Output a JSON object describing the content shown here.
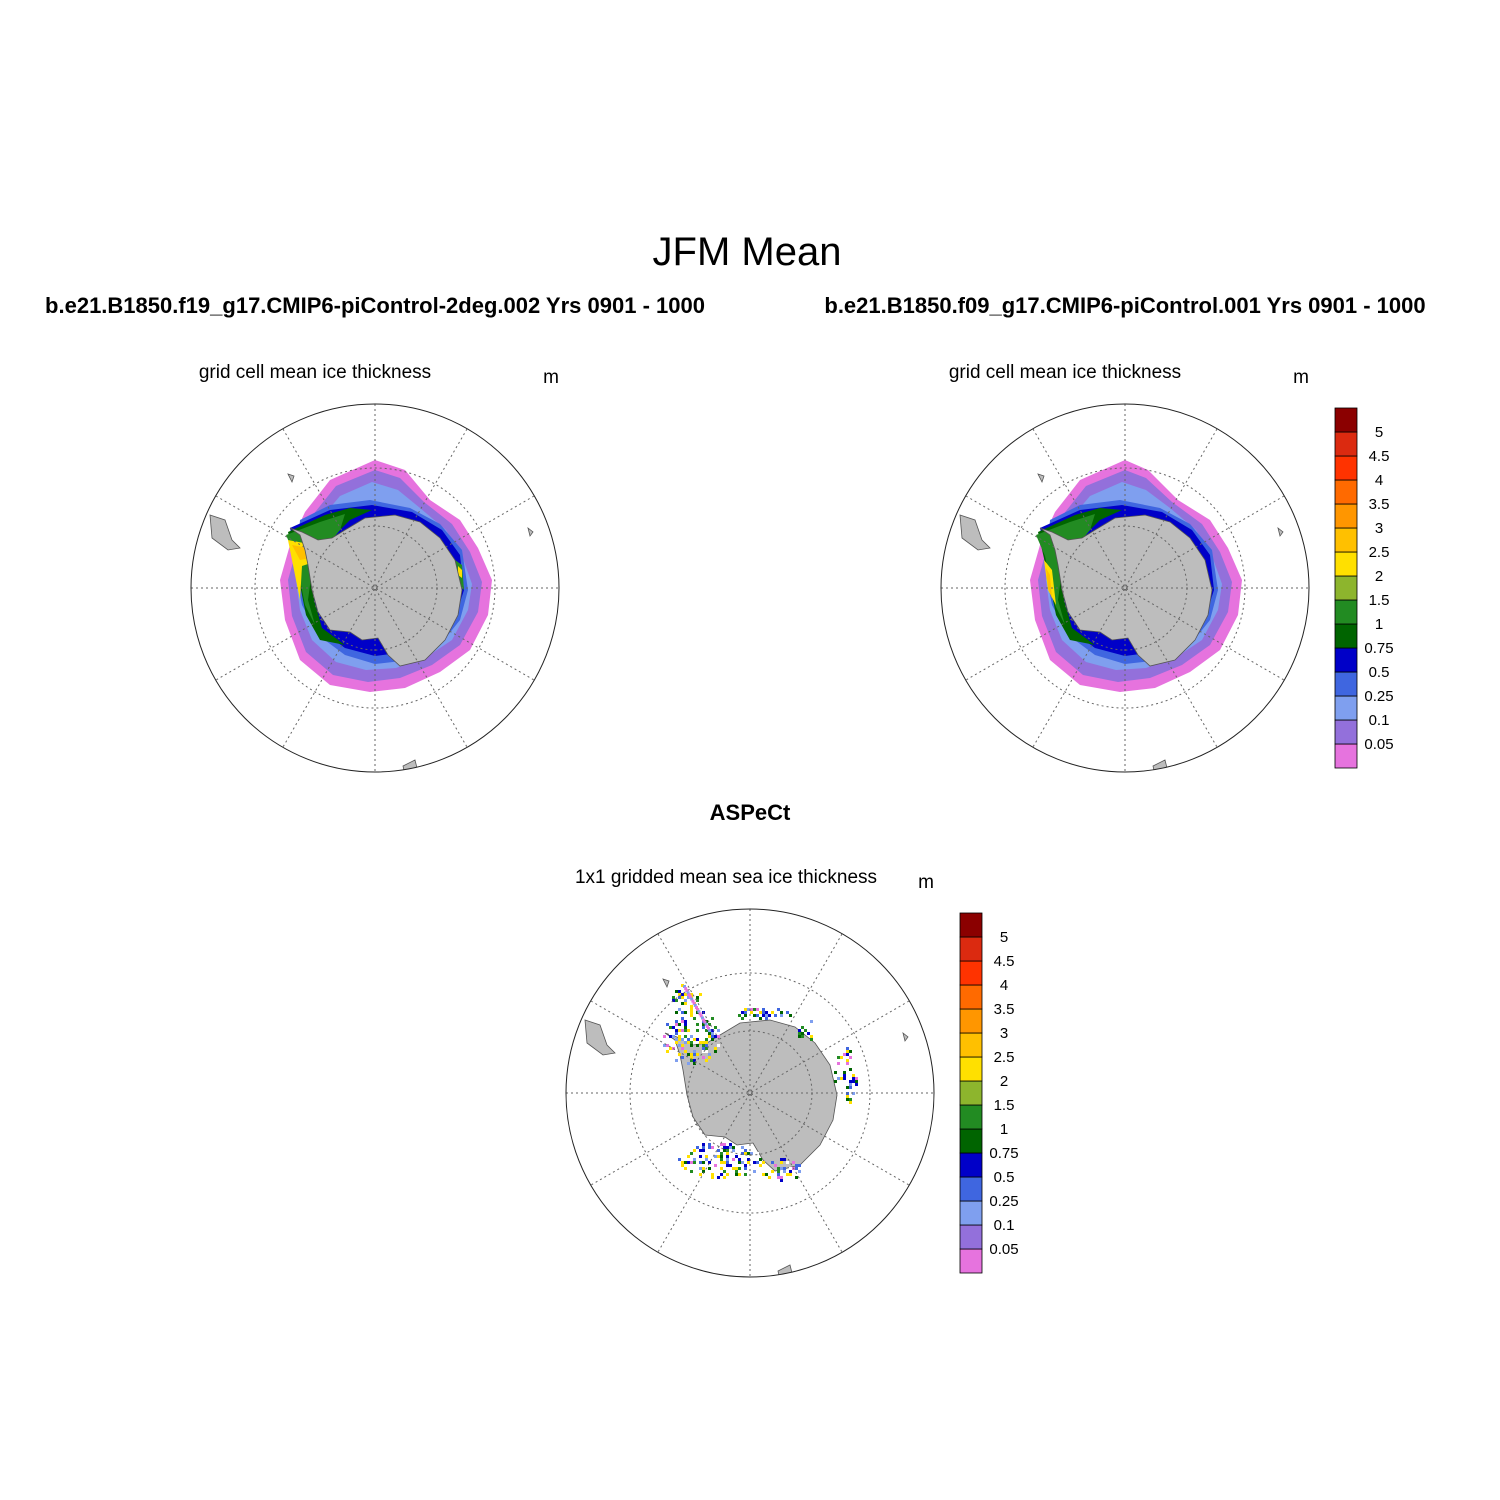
{
  "figure": {
    "title": "JFM Mean"
  },
  "panels": [
    {
      "id": "case-2deg",
      "title": "b.e21.B1850.f19_g17.CMIP6-piControl-2deg.002  Yrs 0901 - 1000",
      "left_label": "grid cell mean ice thickness",
      "right_label": "m"
    },
    {
      "id": "case-1deg",
      "title": "b.e21.B1850.f09_g17.CMIP6-piControl.001  Yrs 0901 - 1000",
      "left_label": "grid cell mean ice thickness",
      "right_label": "m"
    },
    {
      "id": "aspect",
      "title": "ASPeCt",
      "left_label": "1x1 gridded mean sea ice thickness",
      "right_label": "m"
    }
  ],
  "colorbar": {
    "units": "m",
    "labels": [
      "0.05",
      "0.1",
      "0.25",
      "0.5",
      "0.75",
      "1",
      "1.5",
      "2",
      "2.5",
      "3",
      "3.5",
      "4",
      "4.5",
      "5"
    ],
    "colors": [
      "#e673de",
      "#9370db",
      "#7f9fef",
      "#3f66e0",
      "#0000c8",
      "#006400",
      "#228b22",
      "#8db52d",
      "#ffe000",
      "#ffc000",
      "#ff9600",
      "#ff6a00",
      "#ff3300",
      "#db2a10",
      "#8b0000"
    ]
  },
  "map": {
    "projection": "south-polar-stereographic",
    "land_color": "#bdbdbd"
  }
}
